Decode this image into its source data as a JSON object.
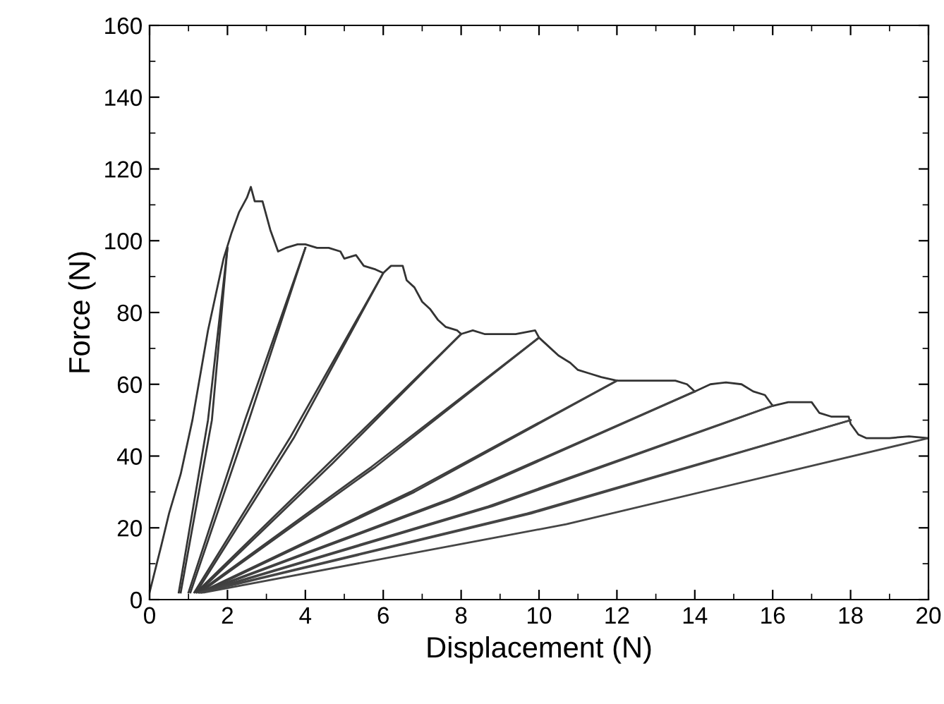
{
  "chart_data": {
    "type": "line",
    "xlabel": "Displacement (N)",
    "ylabel": "Force (N)",
    "xlim": [
      0,
      20
    ],
    "ylim": [
      0,
      160
    ],
    "xticks": [
      0,
      2,
      4,
      6,
      8,
      10,
      12,
      14,
      16,
      18,
      20
    ],
    "yticks": [
      0,
      20,
      40,
      60,
      80,
      100,
      120,
      140,
      160
    ],
    "grid": false,
    "marker": "none",
    "line_style": "solid",
    "series": [
      {
        "color": "#333333",
        "x": [
          0,
          0.3,
          0.5,
          0.8,
          1.1,
          1.5,
          1.9,
          2.1,
          2.3,
          2.5,
          2.6,
          2.7,
          2.9,
          3.1,
          3.3,
          3.5,
          3.8,
          4.0,
          4.3,
          4.6,
          4.9,
          5.0,
          5.3,
          5.5,
          5.8,
          6.0,
          6.2,
          6.5,
          6.6,
          6.8,
          7.0,
          7.2,
          7.4,
          7.6,
          7.9,
          8.0,
          8.3,
          8.6,
          9.0,
          9.4,
          9.9,
          10.0,
          10.3,
          10.5,
          10.8,
          11.0,
          11.3,
          11.6,
          12.0,
          12.4,
          13.0,
          13.5,
          13.8,
          14.0,
          14.4,
          14.8,
          15.2,
          15.5,
          15.8,
          16.0,
          16.4,
          17.0,
          17.2,
          17.5,
          17.95,
          18.0,
          18.2,
          18.4,
          19.0,
          19.5,
          20
        ],
        "values": [
          2,
          15,
          24,
          35,
          50,
          75,
          95,
          102,
          108,
          112,
          115,
          111,
          111,
          103,
          97,
          98,
          99,
          99,
          98,
          98,
          97,
          95,
          96,
          93,
          92,
          91,
          93,
          93,
          89,
          87,
          83,
          81,
          78,
          76,
          75,
          74,
          75,
          74,
          74,
          74,
          75,
          73,
          70,
          68,
          66,
          64,
          63,
          62,
          61,
          61,
          61,
          61,
          60,
          58,
          60,
          60.5,
          60,
          58,
          57,
          54,
          55,
          55,
          52,
          51,
          51,
          49,
          46,
          45,
          45,
          45.5,
          45
        ]
      },
      {
        "color": "#343434",
        "x": [
          0.75,
          1.5,
          2
        ],
        "values": [
          2,
          50,
          98
        ]
      },
      {
        "color": "#353535",
        "x": [
          0.8,
          1.6,
          2
        ],
        "values": [
          2,
          50,
          98
        ]
      },
      {
        "color": "#363636",
        "x": [
          1.0,
          2.45,
          4
        ],
        "values": [
          2,
          50,
          98
        ]
      },
      {
        "color": "#373737",
        "x": [
          1.05,
          2.55,
          4
        ],
        "values": [
          2,
          50,
          98
        ]
      },
      {
        "color": "#383838",
        "x": [
          1.15,
          3.6,
          6
        ],
        "values": [
          2,
          45,
          91
        ]
      },
      {
        "color": "#393939",
        "x": [
          1.2,
          3.7,
          6
        ],
        "values": [
          2,
          45,
          91
        ]
      },
      {
        "color": "#3a3a3a",
        "x": [
          1.2,
          4.6,
          8
        ],
        "values": [
          2,
          38,
          74
        ]
      },
      {
        "color": "#3b3b3b",
        "x": [
          1.25,
          4.7,
          8
        ],
        "values": [
          2,
          38,
          74
        ]
      },
      {
        "color": "#3c3c3c",
        "x": [
          1.25,
          5.7,
          10
        ],
        "values": [
          2,
          37,
          73
        ]
      },
      {
        "color": "#3d3d3d",
        "x": [
          1.3,
          5.8,
          10
        ],
        "values": [
          2,
          37,
          73
        ]
      },
      {
        "color": "#3e3e3e",
        "x": [
          1.3,
          6.7,
          12
        ],
        "values": [
          2,
          30,
          61
        ]
      },
      {
        "color": "#3f3f3f",
        "x": [
          1.35,
          6.8,
          12
        ],
        "values": [
          2,
          30,
          61
        ]
      },
      {
        "color": "#404040",
        "x": [
          1.3,
          7.7,
          14
        ],
        "values": [
          2,
          28,
          58
        ]
      },
      {
        "color": "#414141",
        "x": [
          1.35,
          7.8,
          14
        ],
        "values": [
          2,
          28,
          58
        ]
      },
      {
        "color": "#424242",
        "x": [
          1.3,
          8.7,
          16
        ],
        "values": [
          2,
          26,
          54
        ]
      },
      {
        "color": "#434343",
        "x": [
          1.35,
          8.8,
          16
        ],
        "values": [
          2,
          26,
          54
        ]
      },
      {
        "color": "#444444",
        "x": [
          1.3,
          9.7,
          18
        ],
        "values": [
          2,
          24,
          50
        ]
      },
      {
        "color": "#454545",
        "x": [
          1.35,
          9.8,
          18
        ],
        "values": [
          2,
          24,
          50
        ]
      },
      {
        "color": "#464646",
        "x": [
          1.4,
          10.7,
          20
        ],
        "values": [
          2,
          21,
          45
        ]
      }
    ]
  }
}
